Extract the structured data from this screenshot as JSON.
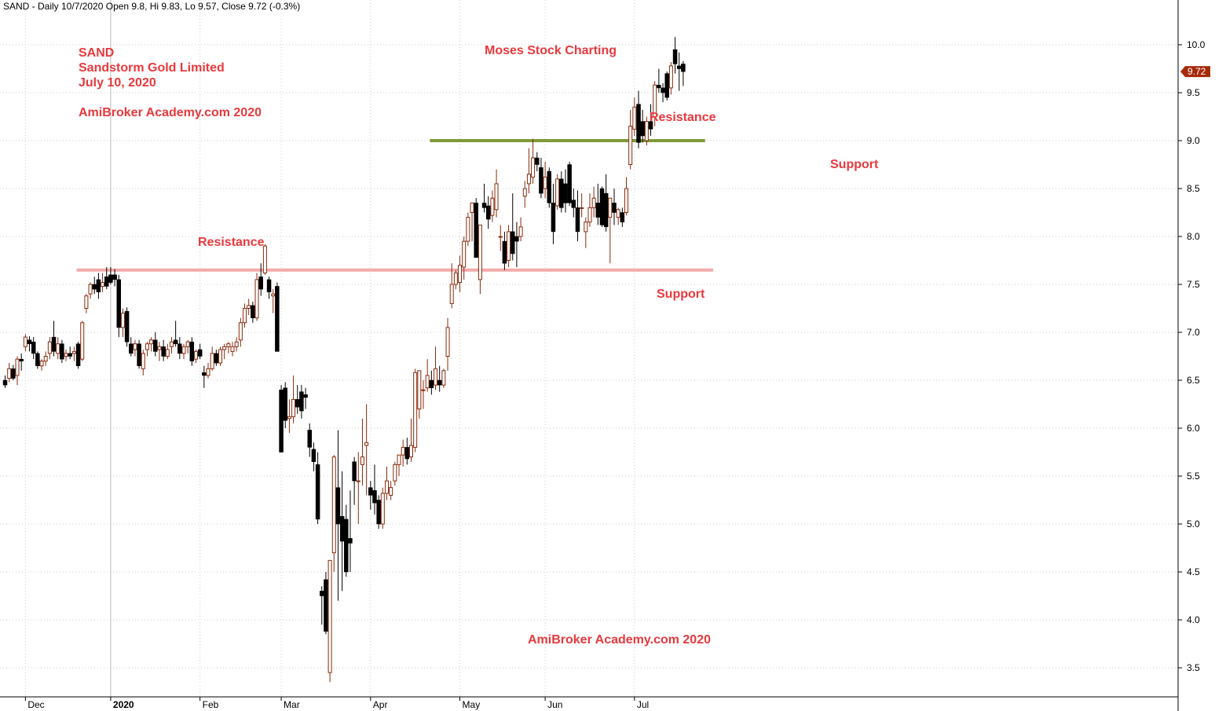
{
  "header": {
    "text": "SAND - Daily 10/7/2020 Open 9.8, Hi 9.83, Lo 9.57, Close 9.72 (-0.3%)"
  },
  "colors": {
    "up_candle": "#8b2a0c",
    "down_candle": "#000000",
    "annotation": "#e8393d",
    "resistance_line_upper": "#7f9a3a",
    "support_line_lower": "#f2aaaa",
    "last_price_bg": "#a52a0a",
    "grid": "#cccccc"
  },
  "annotations": {
    "symbol": "SAND",
    "company": "Sandstorm Gold Limited",
    "date": "July 10, 2020",
    "academy_top": "AmiBroker Academy.com  2020",
    "charting": "Moses Stock Charting",
    "resistance_left": "Resistance",
    "resistance_right": "Resistance",
    "support_mid": "Support",
    "support_right": "Support",
    "academy_bottom": "AmiBroker Academy.com  2020"
  },
  "last_price_label": "9.72",
  "chart_data": {
    "type": "candlestick",
    "y_axis": {
      "ylim": [
        3.2,
        10.5
      ],
      "ticks": [
        3.5,
        4.0,
        4.5,
        5.0,
        5.5,
        6.0,
        6.5,
        7.0,
        7.5,
        8.0,
        8.5,
        9.0,
        9.5,
        10.0
      ]
    },
    "x_axis": {
      "labels": [
        {
          "label": "Dec",
          "index": 5,
          "bold": false
        },
        {
          "label": "2020",
          "index": 26,
          "bold": true
        },
        {
          "label": "Feb",
          "index": 48,
          "bold": false
        },
        {
          "label": "Mar",
          "index": 68,
          "bold": false
        },
        {
          "label": "Apr",
          "index": 90,
          "bold": false
        },
        {
          "label": "May",
          "index": 112,
          "bold": false
        },
        {
          "label": "Jun",
          "index": 133,
          "bold": false
        },
        {
          "label": "Jul",
          "index": 155,
          "bold": false
        }
      ]
    },
    "levels": [
      {
        "name": "Resistance / Support",
        "value": 7.65,
        "from_index": 18,
        "to_index": 174
      },
      {
        "name": "Resistance / Support",
        "value": 9.0,
        "from_index": 105,
        "to_index": 172
      }
    ],
    "ohlc": [
      [
        6.5,
        6.55,
        6.42,
        6.45
      ],
      [
        6.52,
        6.68,
        6.48,
        6.62
      ],
      [
        6.62,
        6.66,
        6.5,
        6.52
      ],
      [
        6.55,
        6.75,
        6.45,
        6.72
      ],
      [
        6.72,
        6.78,
        6.6,
        6.7
      ],
      [
        6.85,
        6.98,
        6.8,
        6.95
      ],
      [
        6.92,
        6.96,
        6.8,
        6.88
      ],
      [
        6.9,
        6.95,
        6.72,
        6.78
      ],
      [
        6.78,
        6.8,
        6.62,
        6.65
      ],
      [
        6.65,
        6.72,
        6.6,
        6.7
      ],
      [
        6.7,
        6.8,
        6.65,
        6.75
      ],
      [
        6.78,
        6.95,
        6.72,
        6.9
      ],
      [
        6.95,
        7.12,
        6.75,
        6.8
      ],
      [
        6.78,
        6.95,
        6.72,
        6.88
      ],
      [
        6.88,
        6.92,
        6.68,
        6.72
      ],
      [
        6.75,
        6.82,
        6.7,
        6.78
      ],
      [
        6.78,
        6.85,
        6.72,
        6.75
      ],
      [
        6.78,
        6.85,
        6.7,
        6.8
      ],
      [
        6.88,
        6.9,
        6.62,
        6.65
      ],
      [
        6.72,
        7.12,
        6.7,
        7.1
      ],
      [
        7.25,
        7.4,
        7.2,
        7.38
      ],
      [
        7.4,
        7.52,
        7.35,
        7.5
      ],
      [
        7.5,
        7.58,
        7.4,
        7.45
      ],
      [
        7.55,
        7.62,
        7.35,
        7.42
      ],
      [
        7.48,
        7.62,
        7.42,
        7.52
      ],
      [
        7.58,
        7.68,
        7.45,
        7.48
      ],
      [
        7.6,
        7.68,
        7.5,
        7.52
      ],
      [
        7.6,
        7.66,
        7.48,
        7.55
      ],
      [
        7.55,
        7.6,
        6.95,
        7.05
      ],
      [
        7.05,
        7.25,
        6.95,
        7.2
      ],
      [
        7.22,
        7.26,
        6.85,
        6.9
      ],
      [
        6.88,
        6.95,
        6.75,
        6.78
      ],
      [
        6.82,
        6.92,
        6.75,
        6.88
      ],
      [
        6.88,
        6.92,
        6.62,
        6.65
      ],
      [
        6.62,
        6.82,
        6.55,
        6.78
      ],
      [
        6.82,
        6.9,
        6.75,
        6.88
      ],
      [
        6.88,
        6.95,
        6.8,
        6.92
      ],
      [
        6.92,
        7.0,
        6.75,
        6.8
      ],
      [
        6.82,
        6.9,
        6.7,
        6.85
      ],
      [
        6.85,
        6.92,
        6.7,
        6.75
      ],
      [
        6.75,
        6.88,
        6.72,
        6.82
      ],
      [
        6.85,
        6.95,
        6.78,
        6.9
      ],
      [
        6.92,
        7.12,
        6.85,
        6.88
      ],
      [
        6.88,
        6.95,
        6.72,
        6.78
      ],
      [
        6.78,
        6.88,
        6.72,
        6.85
      ],
      [
        6.85,
        6.92,
        6.78,
        6.9
      ],
      [
        6.9,
        6.95,
        6.65,
        6.7
      ],
      [
        6.72,
        6.82,
        6.68,
        6.8
      ],
      [
        6.82,
        6.88,
        6.72,
        6.75
      ],
      [
        6.58,
        6.65,
        6.42,
        6.55
      ],
      [
        6.55,
        6.68,
        6.52,
        6.62
      ],
      [
        6.62,
        6.85,
        6.6,
        6.78
      ],
      [
        6.78,
        6.82,
        6.65,
        6.68
      ],
      [
        6.68,
        6.85,
        6.65,
        6.82
      ],
      [
        6.82,
        6.88,
        6.72,
        6.85
      ],
      [
        6.85,
        6.9,
        6.78,
        6.88
      ],
      [
        6.8,
        6.9,
        6.75,
        6.85
      ],
      [
        6.85,
        6.95,
        6.8,
        6.9
      ],
      [
        6.92,
        7.15,
        6.85,
        7.1
      ],
      [
        7.1,
        7.3,
        7.05,
        7.25
      ],
      [
        7.25,
        7.35,
        7.18,
        7.28
      ],
      [
        7.28,
        7.32,
        7.1,
        7.15
      ],
      [
        7.15,
        7.62,
        7.12,
        7.55
      ],
      [
        7.58,
        7.72,
        7.38,
        7.45
      ],
      [
        7.62,
        7.92,
        7.6,
        7.9
      ],
      [
        7.55,
        7.58,
        7.35,
        7.42
      ],
      [
        7.38,
        7.45,
        7.2,
        7.4
      ],
      [
        7.48,
        7.52,
        6.8,
        6.8
      ],
      [
        6.4,
        6.45,
        5.8,
        5.75
      ],
      [
        6.42,
        6.48,
        6.0,
        6.08
      ],
      [
        6.1,
        6.3,
        5.95,
        6.12
      ],
      [
        6.12,
        6.55,
        6.05,
        6.3
      ],
      [
        6.3,
        6.45,
        6.15,
        6.22
      ],
      [
        6.38,
        6.45,
        6.1,
        6.18
      ],
      [
        6.35,
        6.42,
        6.2,
        6.32
      ],
      [
        5.98,
        6.05,
        5.7,
        5.8
      ],
      [
        5.78,
        5.85,
        5.55,
        5.65
      ],
      [
        5.62,
        5.75,
        5.0,
        5.05
      ],
      [
        4.3,
        4.35,
        3.95,
        4.25
      ],
      [
        4.42,
        4.5,
        3.85,
        3.88
      ],
      [
        3.45,
        4.6,
        3.35,
        4.62
      ],
      [
        4.7,
        5.72,
        4.5,
        5.7
      ],
      [
        5.38,
        5.98,
        4.2,
        5.0
      ],
      [
        5.08,
        5.55,
        4.3,
        4.82
      ],
      [
        5.05,
        5.2,
        4.45,
        4.5
      ],
      [
        4.85,
        5.35,
        4.5,
        4.8
      ],
      [
        5.65,
        5.7,
        5.2,
        5.45
      ],
      [
        5.45,
        5.75,
        5.0,
        5.45
      ],
      [
        5.62,
        6.1,
        5.4,
        5.7
      ],
      [
        5.82,
        6.25,
        5.3,
        5.85
      ],
      [
        5.38,
        5.45,
        5.15,
        5.3
      ],
      [
        5.35,
        5.62,
        5.1,
        5.22
      ],
      [
        5.25,
        5.3,
        4.95,
        5.0
      ],
      [
        5.0,
        5.38,
        4.95,
        5.32
      ],
      [
        5.32,
        5.6,
        5.25,
        5.45
      ],
      [
        5.3,
        5.45,
        5.25,
        5.38
      ],
      [
        5.45,
        5.65,
        5.4,
        5.62
      ],
      [
        5.62,
        5.72,
        5.5,
        5.72
      ],
      [
        5.72,
        5.88,
        5.6,
        5.8
      ],
      [
        5.8,
        5.9,
        5.62,
        5.68
      ],
      [
        5.7,
        6.1,
        5.65,
        5.82
      ],
      [
        5.8,
        6.62,
        5.75,
        6.58
      ],
      [
        6.2,
        6.58,
        6.1,
        6.6
      ],
      [
        6.4,
        6.5,
        6.2,
        6.4
      ],
      [
        6.42,
        6.72,
        6.38,
        6.55
      ],
      [
        6.5,
        6.6,
        6.35,
        6.42
      ],
      [
        6.45,
        6.85,
        6.4,
        6.62
      ],
      [
        6.5,
        6.65,
        6.38,
        6.45
      ],
      [
        6.45,
        6.62,
        6.42,
        6.6
      ],
      [
        6.75,
        7.15,
        6.6,
        7.05
      ],
      [
        7.3,
        7.72,
        7.25,
        7.5
      ],
      [
        7.5,
        7.65,
        7.45,
        7.62
      ],
      [
        7.52,
        7.8,
        7.42,
        7.7
      ],
      [
        7.68,
        8.0,
        7.55,
        7.95
      ],
      [
        7.95,
        8.25,
        7.9,
        8.2
      ],
      [
        8.25,
        8.35,
        7.95,
        8.35
      ],
      [
        8.35,
        8.4,
        7.78,
        7.78
      ],
      [
        7.55,
        8.12,
        7.4,
        8.12
      ],
      [
        8.35,
        8.55,
        8.25,
        8.3
      ],
      [
        8.32,
        8.42,
        8.08,
        8.18
      ],
      [
        8.22,
        8.48,
        8.15,
        8.4
      ],
      [
        8.28,
        8.7,
        8.2,
        8.55
      ],
      [
        8.0,
        8.12,
        7.85,
        8.0
      ],
      [
        7.95,
        8.05,
        7.65,
        7.72
      ],
      [
        7.75,
        8.12,
        7.68,
        8.05
      ],
      [
        8.05,
        8.45,
        7.75,
        7.82
      ],
      [
        8.0,
        8.15,
        7.68,
        7.95
      ],
      [
        8.0,
        8.2,
        7.95,
        8.1
      ],
      [
        8.42,
        8.58,
        8.3,
        8.5
      ],
      [
        8.55,
        8.92,
        8.45,
        8.65
      ],
      [
        8.62,
        9.02,
        8.55,
        8.82
      ],
      [
        8.82,
        8.88,
        8.68,
        8.75
      ],
      [
        8.72,
        8.82,
        8.4,
        8.45
      ],
      [
        8.5,
        8.78,
        8.4,
        8.62
      ],
      [
        8.68,
        8.72,
        8.3,
        8.35
      ],
      [
        8.35,
        8.55,
        7.92,
        8.05
      ],
      [
        8.32,
        8.65,
        8.28,
        8.6
      ],
      [
        8.6,
        8.68,
        8.25,
        8.3
      ],
      [
        8.55,
        8.7,
        8.25,
        8.35
      ],
      [
        8.75,
        8.78,
        8.32,
        8.35
      ],
      [
        8.38,
        8.5,
        8.2,
        8.3
      ],
      [
        8.3,
        8.48,
        7.95,
        8.05
      ],
      [
        8.3,
        8.45,
        8.2,
        8.3
      ],
      [
        8.05,
        8.2,
        7.88,
        8.15
      ],
      [
        8.15,
        8.45,
        8.1,
        8.3
      ],
      [
        8.3,
        8.52,
        8.2,
        8.4
      ],
      [
        8.35,
        8.55,
        8.12,
        8.2
      ],
      [
        8.5,
        8.52,
        8.1,
        8.12
      ],
      [
        8.45,
        8.65,
        8.05,
        8.1
      ],
      [
        8.2,
        8.4,
        7.72,
        8.4
      ],
      [
        8.35,
        8.5,
        8.12,
        8.25
      ],
      [
        8.2,
        8.3,
        8.12,
        8.28
      ],
      [
        8.25,
        8.3,
        8.1,
        8.15
      ],
      [
        8.25,
        8.62,
        8.22,
        8.5
      ],
      [
        8.75,
        9.32,
        8.7,
        9.15
      ],
      [
        9.12,
        9.45,
        9.05,
        9.35
      ],
      [
        9.38,
        9.52,
        8.92,
        8.98
      ],
      [
        9.2,
        9.32,
        8.98,
        9.05
      ],
      [
        9.0,
        9.25,
        8.95,
        9.2
      ],
      [
        9.2,
        9.38,
        9.05,
        9.12
      ],
      [
        9.25,
        9.62,
        9.15,
        9.58
      ],
      [
        9.58,
        9.75,
        9.5,
        9.55
      ],
      [
        9.55,
        9.6,
        9.4,
        9.5
      ],
      [
        9.7,
        9.72,
        9.42,
        9.45
      ],
      [
        9.55,
        9.82,
        9.48,
        9.78
      ],
      [
        9.95,
        10.08,
        9.7,
        9.8
      ],
      [
        9.78,
        9.92,
        9.52,
        9.75
      ],
      [
        9.8,
        9.83,
        9.57,
        9.72
      ]
    ]
  }
}
